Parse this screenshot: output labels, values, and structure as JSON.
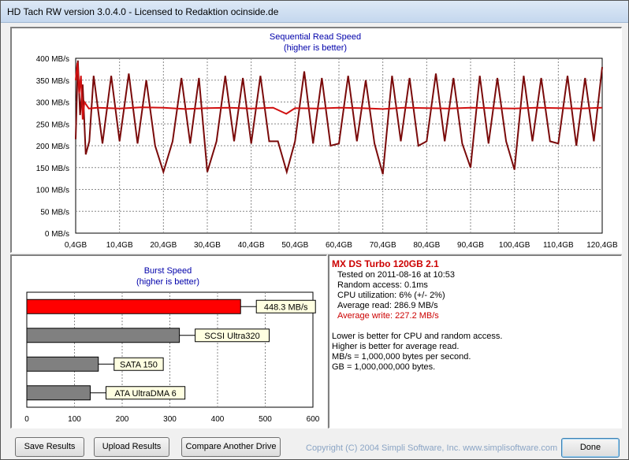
{
  "window": {
    "title": "HD Tach RW version 3.0.4.0 - Licensed to Redaktion ocinside.de"
  },
  "seq_chart": {
    "title": "Sequential Read Speed",
    "subtitle": "(higher is better)",
    "y_ticks": [
      "400 MB/s",
      "350 MB/s",
      "300 MB/s",
      "250 MB/s",
      "200 MB/s",
      "150 MB/s",
      "100 MB/s",
      "50 MB/s",
      "0 MB/s"
    ],
    "x_ticks": [
      "0,4GB",
      "10,4GB",
      "20,4GB",
      "30,4GB",
      "40,4GB",
      "50,4GB",
      "60,4GB",
      "70,4GB",
      "80,4GB",
      "90,4GB",
      "100,4GB",
      "110,4GB",
      "120,4GB"
    ]
  },
  "burst_chart": {
    "title": "Burst Speed",
    "subtitle": "(higher is better)",
    "x_ticks": [
      "0",
      "100",
      "200",
      "300",
      "400",
      "500",
      "600"
    ]
  },
  "chart_data": [
    {
      "type": "line",
      "title": "Sequential Read Speed",
      "subtitle": "(higher is better)",
      "xlabel": "",
      "ylabel": "",
      "xlim": [
        0.4,
        120.4
      ],
      "ylim": [
        0,
        400
      ],
      "grid": true,
      "series": [
        {
          "color": "#d01010",
          "x": [
            0.4,
            0.8,
            1.2,
            1.6,
            2.0,
            2.4,
            3.4,
            5.4,
            10.4,
            15.4,
            20.4,
            25.4,
            30.4,
            35.4,
            40.4,
            45.4,
            48.4,
            50.4,
            55.4,
            60.4,
            65.4,
            70.4,
            75.4,
            80.4,
            85.4,
            90.4,
            95.4,
            100.4,
            105.4,
            110.4,
            115.4,
            120.4
          ],
          "y": [
            350,
            390,
            320,
            360,
            260,
            300,
            285,
            287,
            285,
            288,
            287,
            284,
            286,
            287,
            285,
            287,
            273,
            286,
            285,
            287,
            286,
            284,
            287,
            286,
            285,
            287,
            286,
            285,
            287,
            286,
            285,
            287
          ]
        },
        {
          "color": "#7a0a0a",
          "x": [
            0.4,
            0.9,
            1.4,
            2.0,
            2.7,
            3.5,
            4.5,
            6.5,
            8.5,
            10.4,
            12.5,
            14.5,
            16.5,
            18.5,
            20.4,
            22.5,
            24.5,
            26.5,
            28.5,
            30.4,
            32.5,
            34.5,
            36.5,
            38.5,
            40.4,
            42.5,
            44.5,
            46.5,
            48.5,
            50.4,
            52.5,
            54.5,
            56.5,
            58.5,
            60.4,
            62.5,
            64.5,
            66.5,
            68.5,
            70.4,
            72.5,
            74.5,
            76.5,
            78.5,
            80.4,
            82.5,
            84.5,
            86.5,
            88.5,
            90.4,
            92.5,
            94.5,
            96.5,
            98.5,
            100.4,
            102.5,
            104.5,
            106.5,
            108.5,
            110.4,
            112.5,
            114.5,
            116.5,
            118.5,
            120.4
          ],
          "y": [
            215,
            395,
            270,
            340,
            180,
            210,
            360,
            205,
            360,
            210,
            365,
            205,
            350,
            200,
            140,
            210,
            355,
            205,
            355,
            140,
            210,
            360,
            210,
            355,
            205,
            360,
            210,
            210,
            140,
            210,
            370,
            205,
            355,
            200,
            205,
            360,
            210,
            350,
            205,
            135,
            360,
            210,
            355,
            200,
            210,
            365,
            210,
            355,
            205,
            150,
            360,
            205,
            355,
            210,
            145,
            360,
            210,
            355,
            210,
            205,
            360,
            200,
            355,
            210,
            380
          ]
        }
      ]
    },
    {
      "type": "bar",
      "title": "Burst Speed",
      "subtitle": "(higher is better)",
      "orientation": "horizontal",
      "categories": [
        "448.3 MB/s",
        "SCSI Ultra320",
        "SATA 150",
        "ATA UltraDMA 6"
      ],
      "values": [
        448.3,
        320,
        150,
        133
      ],
      "colors": [
        "#ff0000",
        "#808080",
        "#808080",
        "#808080"
      ],
      "xlim": [
        0,
        600
      ],
      "grid": true
    }
  ],
  "info": {
    "drive_name": "MX DS Turbo 120GB 2.1",
    "tested_on": "Tested on 2011-08-16 at 10:53",
    "random_access": "Random access: 0.1ms",
    "cpu_utilization": "CPU utilization: 6% (+/- 2%)",
    "average_read": "Average read: 286.9 MB/s",
    "average_write": "Average write: 227.2 MB/s",
    "notes": [
      "Lower is better for CPU and random access.",
      "Higher is better for average read.",
      "MB/s = 1,000,000 bytes per second.",
      "GB = 1,000,000,000 bytes."
    ],
    "colors": {
      "drive_name": "#cc0000",
      "average_write": "#cc0000"
    }
  },
  "buttons": {
    "save": "Save Results",
    "upload": "Upload Results",
    "compare": "Compare Another Drive",
    "done": "Done"
  },
  "footer": {
    "copyright": "Copyright (C) 2004 Simpli Software, Inc. www.simplisoftware.com"
  }
}
